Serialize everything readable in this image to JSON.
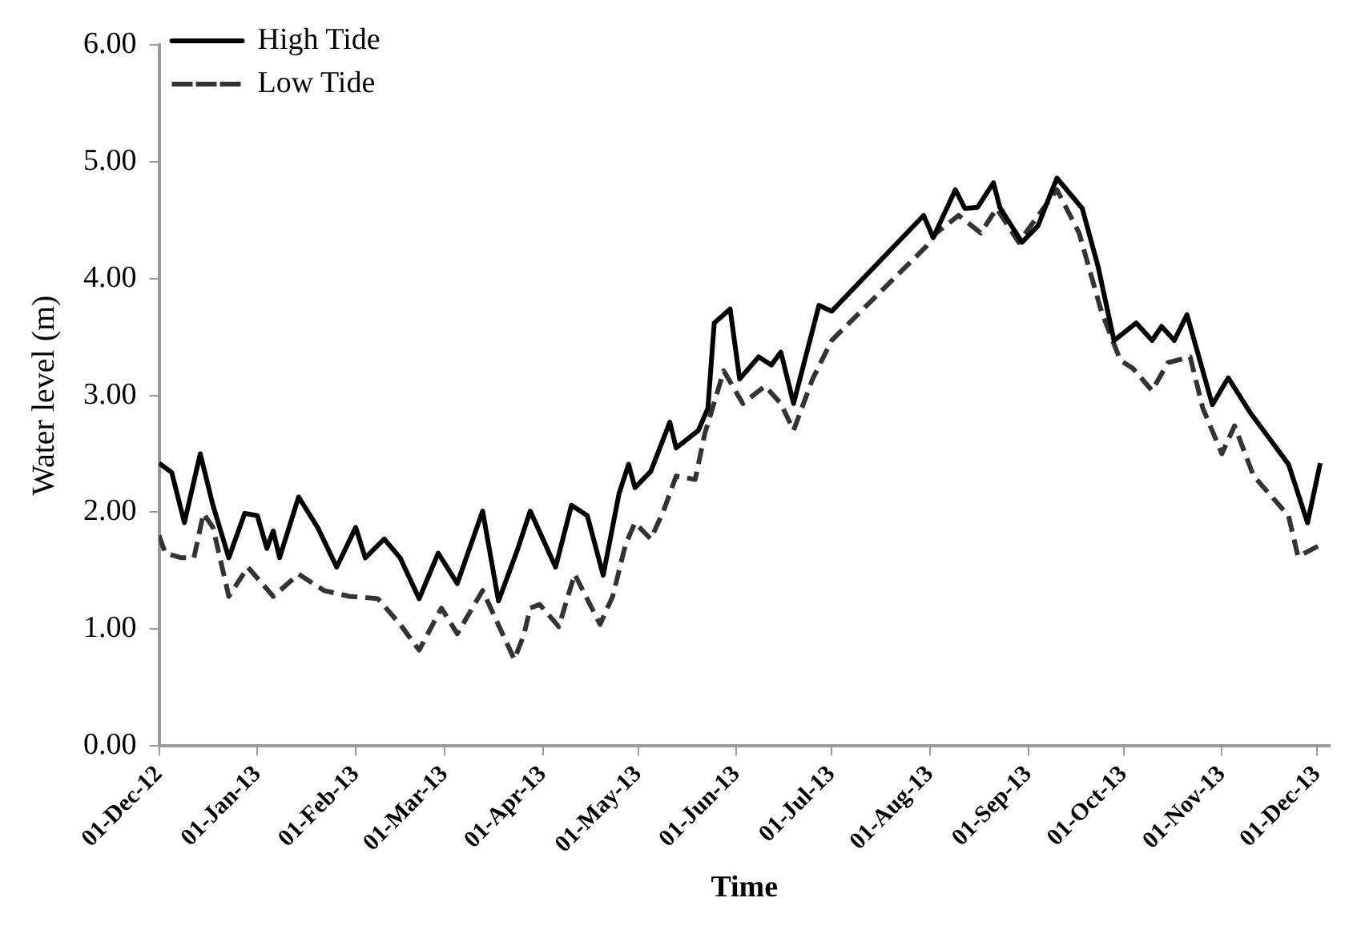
{
  "chart_data": {
    "type": "line",
    "xlabel": "Time",
    "ylabel": "Water level (m)",
    "xlim": [
      "2012-12-01",
      "2013-12-05"
    ],
    "xticks": [
      {
        "value": "2012-12-01",
        "label": "01-Dec-12"
      },
      {
        "value": "2013-01-01",
        "label": "01-Jan-13"
      },
      {
        "value": "2013-02-01",
        "label": "01-Feb-13"
      },
      {
        "value": "2013-03-01",
        "label": "01-Mar-13"
      },
      {
        "value": "2013-04-01",
        "label": "01-Apr-13"
      },
      {
        "value": "2013-05-01",
        "label": "01-May-13"
      },
      {
        "value": "2013-06-01",
        "label": "01-Jun-13"
      },
      {
        "value": "2013-07-01",
        "label": "01-Jul-13"
      },
      {
        "value": "2013-08-01",
        "label": "01-Aug-13"
      },
      {
        "value": "2013-09-01",
        "label": "01-Sep-13"
      },
      {
        "value": "2013-10-01",
        "label": "01-Oct-13"
      },
      {
        "value": "2013-11-01",
        "label": "01-Nov-13"
      },
      {
        "value": "2013-12-01",
        "label": "01-Dec-13"
      }
    ],
    "ylim": [
      0,
      6
    ],
    "yticks": [
      {
        "value": 0,
        "label": "0.00"
      },
      {
        "value": 1,
        "label": "1.00"
      },
      {
        "value": 2,
        "label": "2.00"
      },
      {
        "value": 3,
        "label": "3.00"
      },
      {
        "value": 4,
        "label": "4.00"
      },
      {
        "value": 5,
        "label": "5.00"
      },
      {
        "value": 6,
        "label": "6.00"
      }
    ],
    "grid": false,
    "legend": "top left",
    "marker": "none",
    "series": [
      {
        "name": "High Tide",
        "color": "#000000",
        "line_style": "solid",
        "x": [
          "2012-12-01",
          "2012-12-05",
          "2012-12-09",
          "2012-12-14",
          "2012-12-18",
          "2012-12-23",
          "2012-12-28",
          "2013-01-01",
          "2013-01-04",
          "2013-01-06",
          "2013-01-08",
          "2013-01-14",
          "2013-01-20",
          "2013-01-26",
          "2013-02-01",
          "2013-02-04",
          "2013-02-10",
          "2013-02-15",
          "2013-02-21",
          "2013-02-27",
          "2013-03-05",
          "2013-03-13",
          "2013-03-18",
          "2013-03-24",
          "2013-03-28",
          "2013-04-05",
          "2013-04-10",
          "2013-04-15",
          "2013-04-20",
          "2013-04-25",
          "2013-04-28",
          "2013-04-30",
          "2013-05-05",
          "2013-05-11",
          "2013-05-13",
          "2013-05-20",
          "2013-05-23",
          "2013-05-25",
          "2013-05-30",
          "2013-06-02",
          "2013-06-08",
          "2013-06-12",
          "2013-06-15",
          "2013-06-19",
          "2013-06-27",
          "2013-07-01",
          "2013-07-30",
          "2013-08-02",
          "2013-08-09",
          "2013-08-12",
          "2013-08-16",
          "2013-08-21",
          "2013-08-23",
          "2013-08-30",
          "2013-09-04",
          "2013-09-10",
          "2013-09-18",
          "2013-09-23",
          "2013-09-28",
          "2013-10-05",
          "2013-10-10",
          "2013-10-13",
          "2013-10-17",
          "2013-10-21",
          "2013-10-29",
          "2013-11-03",
          "2013-11-10",
          "2013-11-16",
          "2013-11-22",
          "2013-11-28",
          "2013-12-02"
        ],
        "values": [
          2.42,
          2.34,
          1.91,
          2.5,
          2.06,
          1.61,
          1.99,
          1.97,
          1.69,
          1.84,
          1.61,
          2.13,
          1.87,
          1.53,
          1.87,
          1.61,
          1.77,
          1.61,
          1.26,
          1.65,
          1.39,
          2.01,
          1.24,
          1.68,
          2.01,
          1.53,
          2.06,
          1.97,
          1.46,
          2.16,
          2.41,
          2.21,
          2.35,
          2.77,
          2.55,
          2.7,
          2.89,
          3.62,
          3.74,
          3.14,
          3.33,
          3.26,
          3.37,
          2.93,
          3.77,
          3.72,
          4.54,
          4.35,
          4.76,
          4.6,
          4.61,
          4.82,
          4.61,
          4.31,
          4.45,
          4.86,
          4.6,
          4.1,
          3.47,
          3.62,
          3.47,
          3.59,
          3.47,
          3.69,
          2.92,
          3.15,
          2.85,
          2.63,
          2.41,
          1.91,
          2.42
        ]
      },
      {
        "name": "Low Tide",
        "color": "#333333",
        "line_style": "dashed",
        "x": [
          "2012-12-01",
          "2012-12-03",
          "2012-12-08",
          "2012-12-12",
          "2012-12-15",
          "2012-12-18",
          "2012-12-23",
          "2012-12-29",
          "2013-01-06",
          "2013-01-14",
          "2013-01-22",
          "2013-01-30",
          "2013-02-08",
          "2013-02-15",
          "2013-02-21",
          "2013-02-28",
          "2013-03-05",
          "2013-03-13",
          "2013-03-23",
          "2013-03-26",
          "2013-03-28",
          "2013-03-31",
          "2013-04-06",
          "2013-04-11",
          "2013-04-19",
          "2013-04-23",
          "2013-04-27",
          "2013-04-30",
          "2013-05-05",
          "2013-05-09",
          "2013-05-13",
          "2013-05-19",
          "2013-05-22",
          "2013-05-28",
          "2013-06-03",
          "2013-06-10",
          "2013-06-15",
          "2013-06-19",
          "2013-06-25",
          "2013-07-01",
          "2013-07-31",
          "2013-08-03",
          "2013-08-10",
          "2013-08-17",
          "2013-08-22",
          "2013-08-29",
          "2013-09-10",
          "2013-09-17",
          "2013-09-24",
          "2013-09-30",
          "2013-10-04",
          "2013-10-10",
          "2013-10-15",
          "2013-10-22",
          "2013-10-26",
          "2013-11-01",
          "2013-11-05",
          "2013-11-11",
          "2013-11-22",
          "2013-11-25",
          "2013-12-02"
        ],
        "values": [
          1.8,
          1.65,
          1.61,
          1.61,
          1.99,
          1.87,
          1.28,
          1.53,
          1.28,
          1.47,
          1.33,
          1.28,
          1.26,
          1.04,
          0.82,
          1.18,
          0.96,
          1.33,
          0.74,
          0.95,
          1.18,
          1.21,
          1.02,
          1.47,
          1.04,
          1.28,
          1.72,
          1.91,
          1.77,
          2.01,
          2.31,
          2.28,
          2.67,
          3.21,
          2.93,
          3.08,
          2.93,
          2.7,
          3.14,
          3.47,
          4.28,
          4.39,
          4.54,
          4.39,
          4.6,
          4.31,
          4.76,
          4.39,
          3.72,
          3.3,
          3.23,
          3.04,
          3.28,
          3.33,
          2.89,
          2.5,
          2.74,
          2.31,
          1.97,
          1.62,
          1.72
        ]
      }
    ]
  }
}
